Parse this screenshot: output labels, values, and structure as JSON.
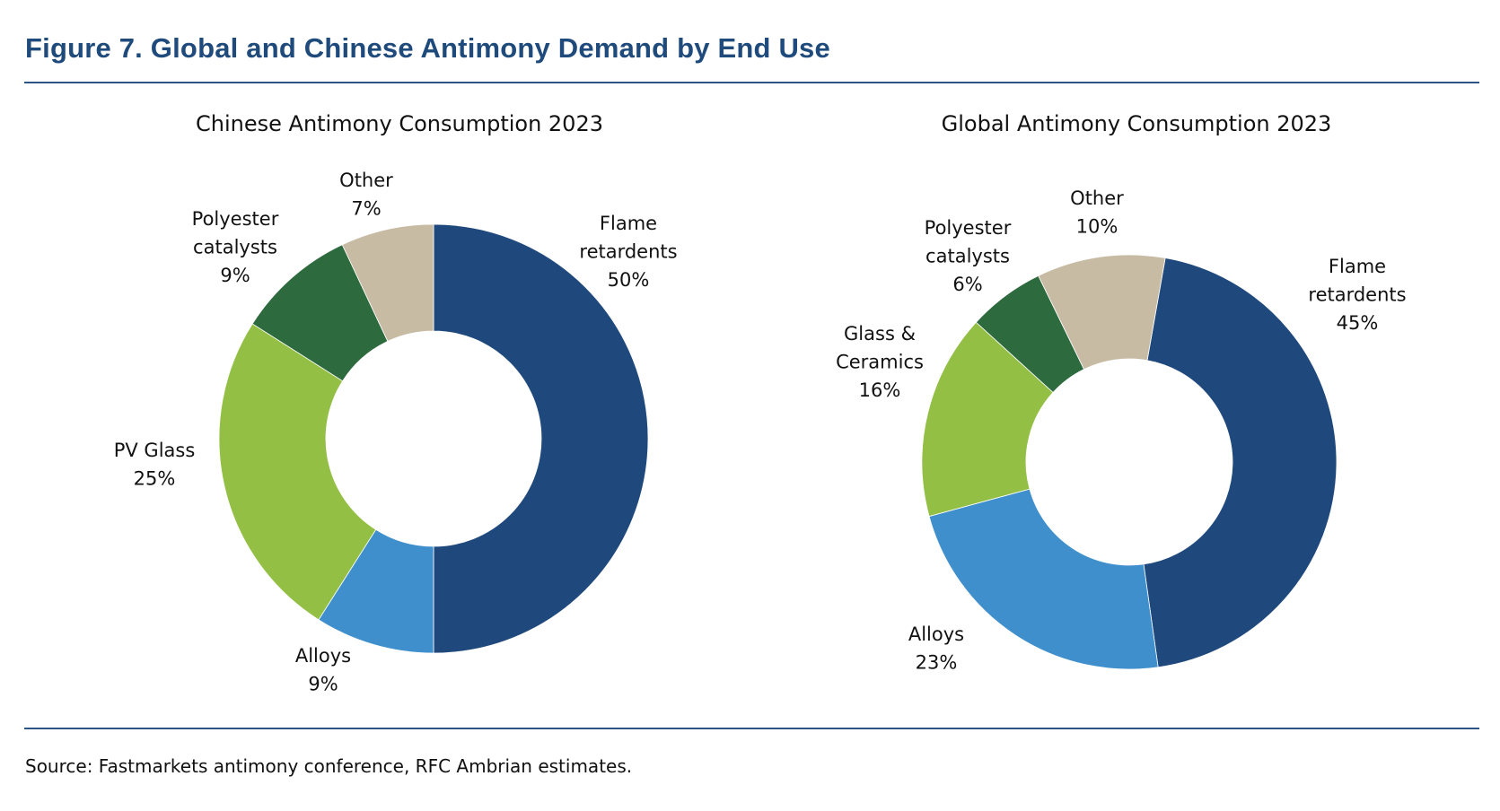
{
  "figure_title": "Figure 7. Global and Chinese Antimony Demand by End Use",
  "source": "Source: Fastmarkets antimony conference, RFC Ambrian estimates.",
  "colors": {
    "flame": "#1f497d",
    "alloys": "#3f8fcd",
    "glass": "#93bf45",
    "polyester": "#2d6a3e",
    "other": "#c8bba3",
    "title": "#1f4a7c",
    "rule": "#2e5486"
  },
  "chart_data": [
    {
      "type": "pie",
      "donut": true,
      "title": "Chinese Antimony Consumption 2023",
      "unit": "%",
      "slices": [
        {
          "label": "Flame retardents",
          "label_lines": [
            "Flame",
            "retardents",
            "50%"
          ],
          "value": 50,
          "color_key": "flame"
        },
        {
          "label": "Alloys",
          "label_lines": [
            "Alloys",
            "9%"
          ],
          "value": 9,
          "color_key": "alloys"
        },
        {
          "label": "PV Glass",
          "label_lines": [
            "PV Glass",
            "25%"
          ],
          "value": 25,
          "color_key": "glass"
        },
        {
          "label": "Polyester catalysts",
          "label_lines": [
            "Polyester",
            "catalysts",
            "9%"
          ],
          "value": 9,
          "color_key": "polyester"
        },
        {
          "label": "Other",
          "label_lines": [
            "Other",
            "7%"
          ],
          "value": 7,
          "color_key": "other"
        }
      ]
    },
    {
      "type": "pie",
      "donut": true,
      "title": "Global Antimony Consumption 2023",
      "unit": "%",
      "slices": [
        {
          "label": "Flame retardents",
          "label_lines": [
            "Flame",
            "retardents",
            "45%"
          ],
          "value": 45,
          "color_key": "flame"
        },
        {
          "label": "Alloys",
          "label_lines": [
            "Alloys",
            "23%"
          ],
          "value": 23,
          "color_key": "alloys"
        },
        {
          "label": "Glass & Ceramics",
          "label_lines": [
            "Glass &",
            "Ceramics",
            "16%"
          ],
          "value": 16,
          "color_key": "glass"
        },
        {
          "label": "Polyester catalysts",
          "label_lines": [
            "Polyester",
            "catalysts",
            "6%"
          ],
          "value": 6,
          "color_key": "polyester"
        },
        {
          "label": "Other",
          "label_lines": [
            "Other",
            "10%"
          ],
          "value": 10,
          "color_key": "other"
        }
      ]
    }
  ]
}
